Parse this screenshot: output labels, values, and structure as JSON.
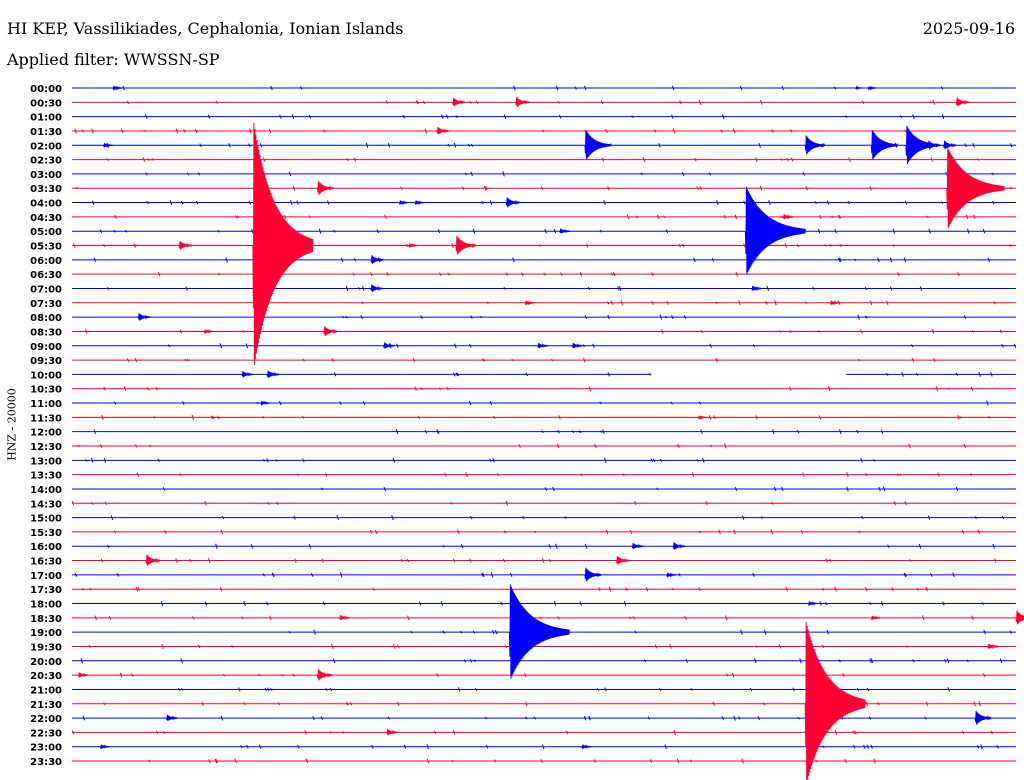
{
  "header": {
    "title": "HI KEP, Vassilikiades, Cephalonia, Ionian Islands",
    "date": "2025-09-16",
    "filter": "Applied filter: WWSSN-SP"
  },
  "chart_data": {
    "type": "line",
    "title": "HI KEP, Vassilikiades, Cephalonia, Ionian Islands",
    "ylabel": "HNZ - 20000",
    "trace_minutes": 30,
    "scale_counts_per_trace": 20000,
    "colors": [
      "#0000ff",
      "#ff0033"
    ],
    "row_labels": [
      "00:00",
      "00:30",
      "01:00",
      "01:30",
      "02:00",
      "02:30",
      "03:00",
      "03:30",
      "04:00",
      "04:30",
      "05:00",
      "05:30",
      "06:00",
      "06:30",
      "07:00",
      "07:30",
      "08:00",
      "08:30",
      "09:00",
      "09:30",
      "10:00",
      "10:30",
      "11:00",
      "11:30",
      "12:00",
      "12:30",
      "13:00",
      "13:30",
      "14:00",
      "14:30",
      "15:00",
      "15:30",
      "16:00",
      "16:30",
      "17:00",
      "17:30",
      "18:00",
      "18:30",
      "19:00",
      "19:30",
      "20:00",
      "20:30",
      "21:00",
      "21:30",
      "22:00",
      "22:30",
      "23:00",
      "23:30"
    ],
    "data_gaps": [
      {
        "row": 20,
        "from_min": 18.4,
        "to_min": 24.6
      }
    ],
    "events": [
      {
        "row": 0,
        "min": 1.3,
        "amp": 4000
      },
      {
        "row": 0,
        "min": 25.3,
        "amp": 3000
      },
      {
        "row": 0,
        "min": 24.9,
        "amp": 2000
      },
      {
        "row": 1,
        "min": 12.1,
        "amp": 8000
      },
      {
        "row": 1,
        "min": 14.1,
        "amp": 9000
      },
      {
        "row": 1,
        "min": 28.1,
        "amp": 8000
      },
      {
        "row": 3,
        "min": 11.6,
        "amp": 7000
      },
      {
        "row": 4,
        "min": 1.0,
        "amp": 4000
      },
      {
        "row": 4,
        "min": 16.3,
        "amp": 24000
      },
      {
        "row": 4,
        "min": 23.3,
        "amp": 16000
      },
      {
        "row": 4,
        "min": 25.4,
        "amp": 24000
      },
      {
        "row": 4,
        "min": 26.5,
        "amp": 30000
      },
      {
        "row": 4,
        "min": 27.2,
        "amp": 8000
      },
      {
        "row": 4,
        "min": 27.7,
        "amp": 8000
      },
      {
        "row": 7,
        "min": 7.8,
        "amp": 12000
      },
      {
        "row": 7,
        "min": 27.8,
        "amp": 60000
      },
      {
        "row": 8,
        "min": 10.4,
        "amp": 4000
      },
      {
        "row": 8,
        "min": 10.9,
        "amp": 4000
      },
      {
        "row": 8,
        "min": 13.8,
        "amp": 9000
      },
      {
        "row": 9,
        "min": 22.6,
        "amp": 5000
      },
      {
        "row": 10,
        "min": 15.5,
        "amp": 5000
      },
      {
        "row": 10,
        "min": 21.4,
        "amp": 65000
      },
      {
        "row": 11,
        "min": 3.4,
        "amp": 8000
      },
      {
        "row": 11,
        "min": 5.75,
        "amp": 180000
      },
      {
        "row": 11,
        "min": 10.7,
        "amp": 4000
      },
      {
        "row": 11,
        "min": 12.2,
        "amp": 16000
      },
      {
        "row": 12,
        "min": 9.5,
        "amp": 8000
      },
      {
        "row": 14,
        "min": 9.5,
        "amp": 7000
      },
      {
        "row": 14,
        "min": 21.6,
        "amp": 5000
      },
      {
        "row": 15,
        "min": 14.4,
        "amp": 4000
      },
      {
        "row": 15,
        "min": 24.1,
        "amp": 4000
      },
      {
        "row": 16,
        "min": 2.1,
        "amp": 7000
      },
      {
        "row": 17,
        "min": 4.2,
        "amp": 4000
      },
      {
        "row": 17,
        "min": 8.0,
        "amp": 9000
      },
      {
        "row": 18,
        "min": 9.9,
        "amp": 6000
      },
      {
        "row": 18,
        "min": 14.8,
        "amp": 5000
      },
      {
        "row": 18,
        "min": 15.9,
        "amp": 5000
      },
      {
        "row": 20,
        "min": 5.4,
        "amp": 6000
      },
      {
        "row": 20,
        "min": 6.2,
        "amp": 7000
      },
      {
        "row": 22,
        "min": 6.0,
        "amp": 4000
      },
      {
        "row": 23,
        "min": 19.9,
        "amp": 3000
      },
      {
        "row": 32,
        "min": 17.8,
        "amp": 6000
      },
      {
        "row": 32,
        "min": 19.1,
        "amp": 7000
      },
      {
        "row": 33,
        "min": 2.35,
        "amp": 10000
      },
      {
        "row": 33,
        "min": 17.3,
        "amp": 8000
      },
      {
        "row": 34,
        "min": 16.3,
        "amp": 12000
      },
      {
        "row": 34,
        "min": 18.9,
        "amp": 4000
      },
      {
        "row": 36,
        "min": 23.4,
        "amp": 4000
      },
      {
        "row": 37,
        "min": 8.5,
        "amp": 5000
      },
      {
        "row": 37,
        "min": 25.4,
        "amp": 4000
      },
      {
        "row": 37,
        "min": 30.0,
        "amp": 12000
      },
      {
        "row": 38,
        "min": 13.9,
        "amp": 70000
      },
      {
        "row": 39,
        "min": 29.1,
        "amp": 5000
      },
      {
        "row": 41,
        "min": 0.2,
        "amp": 5000
      },
      {
        "row": 41,
        "min": 7.8,
        "amp": 10000
      },
      {
        "row": 43,
        "min": 23.3,
        "amp": 120000
      },
      {
        "row": 44,
        "min": 3.0,
        "amp": 6000
      },
      {
        "row": 44,
        "min": 28.7,
        "amp": 12000
      },
      {
        "row": 45,
        "min": 10.0,
        "amp": 6000
      },
      {
        "row": 46,
        "min": 0.9,
        "amp": 4000
      },
      {
        "row": 46,
        "min": 16.2,
        "amp": 4000
      }
    ]
  }
}
